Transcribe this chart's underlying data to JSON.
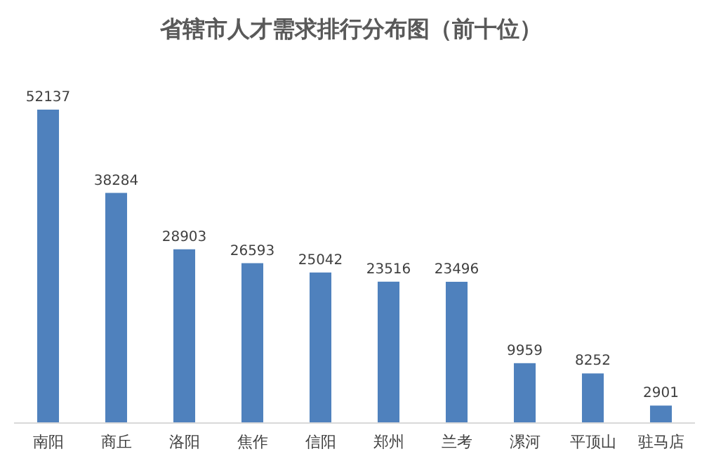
{
  "chart_data": {
    "type": "bar",
    "title": "省辖市人才需求排行分布图（前十位）",
    "categories": [
      "南阳",
      "商丘",
      "洛阳",
      "焦作",
      "信阳",
      "郑州",
      "兰考",
      "漯河",
      "平顶山",
      "驻马店"
    ],
    "values": [
      52137,
      38284,
      28903,
      26593,
      25042,
      23516,
      23496,
      9959,
      8252,
      2901
    ],
    "color": "#4f81bd",
    "data_labels": true
  }
}
